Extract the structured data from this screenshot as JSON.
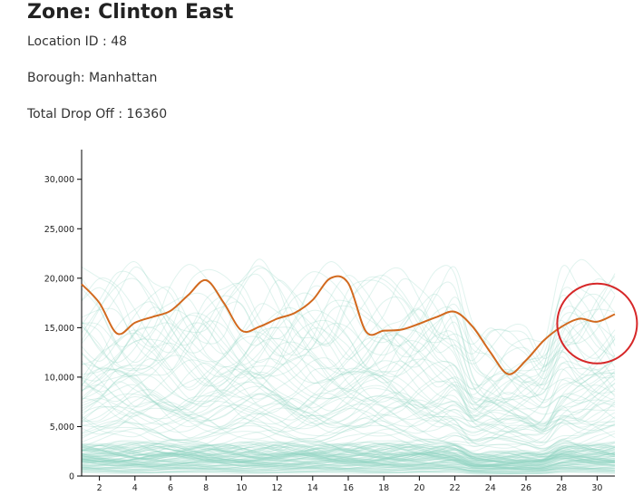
{
  "zone": {
    "title": "Zone: Clinton East",
    "location": "Location ID : 48",
    "borough": "Borough: Manhattan",
    "total": "Total Drop Off : 16360"
  },
  "colors": {
    "highlight": "#d2691e",
    "background_lines": "#8fd3c3",
    "annotation_circle": "#d62728",
    "axis": "#000000"
  },
  "chart_data": {
    "type": "line",
    "title": "",
    "xlabel": "",
    "ylabel": "",
    "xlim": [
      1,
      31
    ],
    "ylim": [
      0,
      33000
    ],
    "x_ticks": [
      2,
      4,
      6,
      8,
      10,
      12,
      14,
      16,
      18,
      20,
      22,
      24,
      26,
      28,
      30
    ],
    "y_ticks": [
      0,
      5000,
      10000,
      15000,
      20000,
      25000,
      30000
    ],
    "y_tick_labels": [
      "0",
      "5,000",
      "10,000",
      "15,000",
      "20,000",
      "25,000",
      "30,000"
    ],
    "highlight_series": {
      "name": "Clinton East",
      "x": [
        1,
        2,
        3,
        4,
        5,
        6,
        7,
        8,
        9,
        10,
        11,
        12,
        13,
        14,
        15,
        16,
        17,
        18,
        19,
        20,
        21,
        22,
        23,
        24,
        25,
        26,
        27,
        28,
        29,
        30,
        31
      ],
      "values": [
        19400,
        17500,
        14400,
        15500,
        16100,
        16700,
        18300,
        19800,
        17500,
        14700,
        15100,
        15900,
        16500,
        17800,
        20000,
        19500,
        14600,
        14700,
        14800,
        15400,
        16100,
        16600,
        15100,
        12500,
        10300,
        11700,
        13700,
        15100,
        15900,
        15600,
        16360
      ]
    },
    "background_series_description": "many faint teal lines for other zones"
  }
}
